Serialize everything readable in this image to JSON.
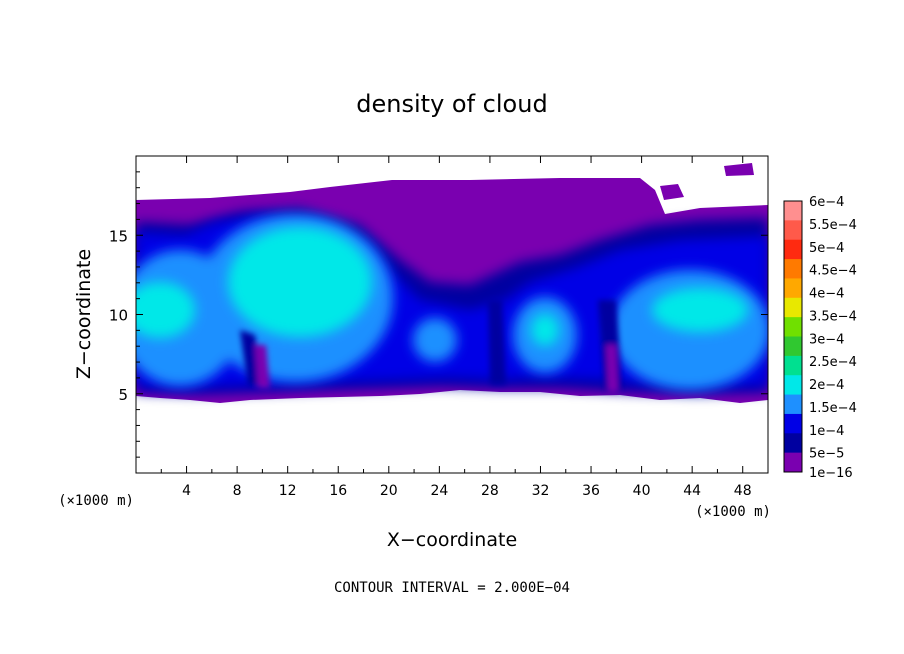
{
  "chart_data": {
    "type": "heatmap",
    "title": "density of cloud",
    "xlabel": "X−coordinate",
    "ylabel": "Z−coordinate",
    "x_unit_label": "(×1000 m)",
    "z_unit_label": "(×1000 m)",
    "xlim": [
      0,
      50
    ],
    "ylim": [
      0,
      20
    ],
    "x_ticks": [
      4,
      8,
      12,
      16,
      20,
      24,
      28,
      32,
      36,
      40,
      44,
      48
    ],
    "x_tick_labels": [
      "4",
      "8",
      "12",
      "16",
      "20",
      "24",
      "28",
      "32",
      "36",
      "40",
      "44",
      "48"
    ],
    "y_ticks": [
      5,
      10,
      15
    ],
    "y_tick_labels": [
      "5",
      "10",
      "15"
    ],
    "footer": "CONTOUR INTERVAL = 2.000E−04",
    "colorbar": {
      "labels": [
        "6e−4",
        "5.5e−4",
        "5e−4",
        "4.5e−4",
        "4e−4",
        "3.5e−4",
        "3e−4",
        "2.5e−4",
        "2e−4",
        "1.5e−4",
        "1e−4",
        "5e−5",
        "1e−16"
      ],
      "colors": [
        "#ff8f8f",
        "#ff5a4a",
        "#ff2a10",
        "#ff7a00",
        "#ffa800",
        "#e8e800",
        "#70e000",
        "#30c830",
        "#00e090",
        "#00e8e8",
        "#1e90ff",
        "#0000e6",
        "#0000a0",
        "#7a00b0"
      ]
    },
    "regions": [
      {
        "x0": 0,
        "x1": 50,
        "z0": 5,
        "z1": 17,
        "level": "1e−16"
      },
      {
        "x0": 0,
        "x1": 8,
        "z0": 6,
        "z1": 15,
        "level": "1.5e−4"
      },
      {
        "x0": 6,
        "x1": 20,
        "z0": 6,
        "z1": 16,
        "level": "2e−4"
      },
      {
        "x0": 29,
        "x1": 35,
        "z0": 6,
        "z1": 11,
        "level": "1.5e−4"
      },
      {
        "x0": 38,
        "x1": 50,
        "z0": 6,
        "z1": 14,
        "level": "1.5e−4"
      }
    ]
  }
}
